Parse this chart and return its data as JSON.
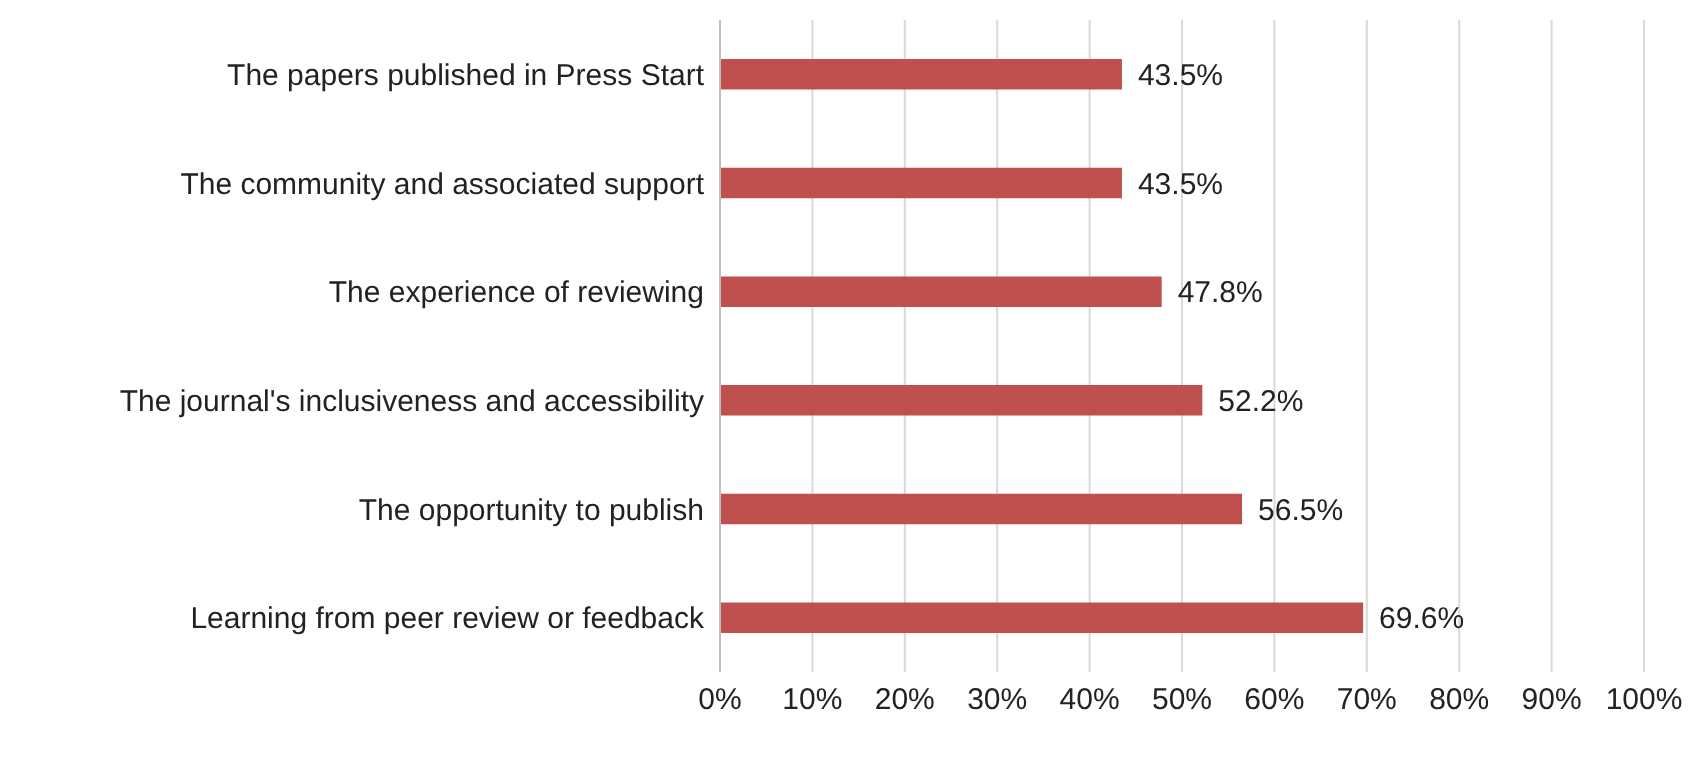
{
  "chart_data": {
    "type": "bar",
    "orientation": "horizontal",
    "categories": [
      "The papers published in Press Start",
      "The community and associated support",
      "The experience of reviewing",
      "The journal's inclusiveness and accessibility",
      "The opportunity to publish",
      "Learning from peer review or feedback"
    ],
    "values": [
      43.5,
      43.5,
      47.8,
      52.2,
      56.5,
      69.6
    ],
    "value_labels": [
      "43.5%",
      "43.5%",
      "47.8%",
      "52.2%",
      "56.5%",
      "69.6%"
    ],
    "color": "#c0504d",
    "xlim": [
      0,
      100
    ],
    "xticks": [
      {
        "value": 0,
        "label": "0%"
      },
      {
        "value": 10,
        "label": "10%"
      },
      {
        "value": 20,
        "label": "20%"
      },
      {
        "value": 30,
        "label": "30%"
      },
      {
        "value": 40,
        "label": "40%"
      },
      {
        "value": 50,
        "label": "50%"
      },
      {
        "value": 60,
        "label": "60%"
      },
      {
        "value": 70,
        "label": "70%"
      },
      {
        "value": 80,
        "label": "80%"
      },
      {
        "value": 90,
        "label": "90%"
      },
      {
        "value": 100,
        "label": "100%"
      }
    ],
    "grid": "x"
  }
}
